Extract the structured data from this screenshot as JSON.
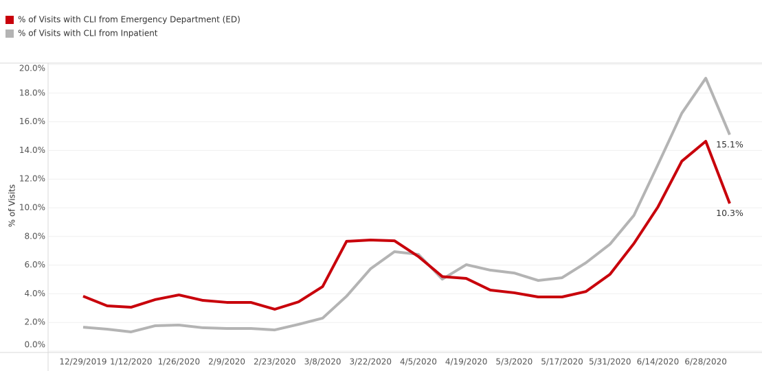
{
  "chart_data": {
    "type": "line",
    "y_label": "% of Visits",
    "categories": [
      "12/29/2019",
      null,
      "1/12/2020",
      null,
      "1/26/2020",
      null,
      "2/9/2020",
      null,
      "2/23/2020",
      null,
      "3/8/2020",
      null,
      "3/22/2020",
      null,
      "4/5/2020",
      null,
      "4/19/2020",
      null,
      "5/3/2020",
      null,
      "5/17/2020",
      null,
      "5/31/2020",
      null,
      "6/14/2020",
      null,
      "6/28/2020",
      null
    ],
    "series": [
      {
        "name": "% of Visits with CLI from Emergency Department (ED)",
        "color": "#c8000b",
        "values": [
          3.83,
          3.16,
          3.06,
          3.59,
          3.92,
          3.54,
          3.4,
          3.4,
          2.92,
          3.44,
          4.5,
          7.66,
          7.75,
          7.7,
          6.6,
          5.2,
          5.07,
          4.26,
          4.07,
          3.78,
          3.78,
          4.16,
          5.36,
          7.51,
          10.05,
          13.25,
          14.64,
          10.3
        ],
        "value_labels": [
          null,
          null,
          null,
          null,
          null,
          null,
          null,
          null,
          null,
          null,
          null,
          null,
          null,
          null,
          null,
          null,
          null,
          null,
          null,
          null,
          null,
          null,
          null,
          null,
          null,
          null,
          null,
          "10.3%"
        ]
      },
      {
        "name": "% of Visits with CLI from Inpatient",
        "color": "#b4b4b4",
        "values": [
          1.67,
          1.53,
          1.34,
          1.77,
          1.82,
          1.63,
          1.58,
          1.58,
          1.48,
          1.87,
          2.3,
          3.83,
          5.74,
          6.94,
          6.75,
          5.02,
          6.03,
          5.65,
          5.45,
          4.93,
          5.12,
          6.17,
          7.46,
          9.47,
          13.0,
          16.6,
          19.04,
          15.1
        ],
        "value_labels": [
          null,
          null,
          null,
          null,
          null,
          null,
          null,
          null,
          null,
          null,
          null,
          null,
          null,
          null,
          null,
          null,
          null,
          null,
          null,
          null,
          null,
          null,
          null,
          null,
          null,
          null,
          null,
          "15.1%"
        ]
      }
    ],
    "ylim": [
      0,
      20
    ],
    "yticks": [
      {
        "value": 0,
        "label": "0.0%"
      },
      {
        "value": 2,
        "label": "2.0%"
      },
      {
        "value": 4,
        "label": "4.0%"
      },
      {
        "value": 6,
        "label": "6.0%"
      },
      {
        "value": 8,
        "label": "8.0%"
      },
      {
        "value": 10,
        "label": "10.0%"
      },
      {
        "value": 12,
        "label": "12.0%"
      },
      {
        "value": 14,
        "label": "14.0%"
      },
      {
        "value": 16,
        "label": "16.0%"
      },
      {
        "value": 18,
        "label": "18.0%"
      },
      {
        "value": 20,
        "label": "20.0%"
      }
    ],
    "grid": true
  }
}
